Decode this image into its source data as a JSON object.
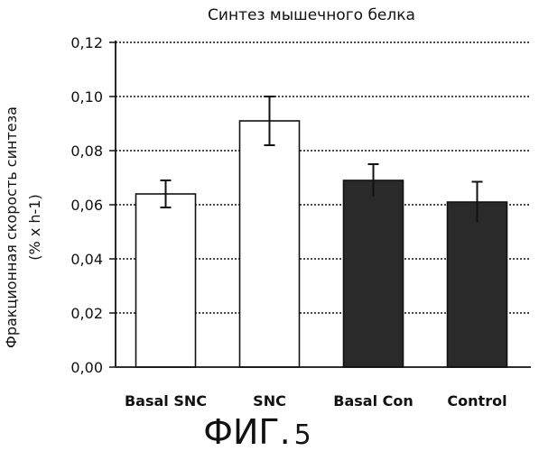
{
  "chart_data": {
    "type": "bar",
    "title": "Синтез мышечного белка",
    "ylabel_lines": [
      "Фракционная скорость синтеза",
      "(% x h-1)"
    ],
    "xlabel": "",
    "categories": [
      "Basal SNC",
      "SNC",
      "Basal Con",
      "Control"
    ],
    "values": [
      0.064,
      0.091,
      0.069,
      0.061
    ],
    "errors": [
      0.005,
      0.009,
      0.006,
      0.0075
    ],
    "fill_colors": [
      "#ffffff",
      "#ffffff",
      "#2a2a2a",
      "#2a2a2a"
    ],
    "ylim": [
      0.0,
      0.12
    ],
    "yticks": [
      0.0,
      0.02,
      0.04,
      0.06,
      0.08,
      0.1,
      0.12
    ],
    "ytick_labels": [
      "0,00",
      "0,02",
      "0,04",
      "0,06",
      "0,08",
      "0,10",
      "0,12"
    ],
    "grid": true,
    "grid_style": "dotted"
  },
  "caption": {
    "prefix": "ФИГ.",
    "number": "5"
  },
  "colors": {
    "ink": "#111111",
    "dark_bar": "#2a2a2a",
    "light_bar": "#ffffff"
  }
}
